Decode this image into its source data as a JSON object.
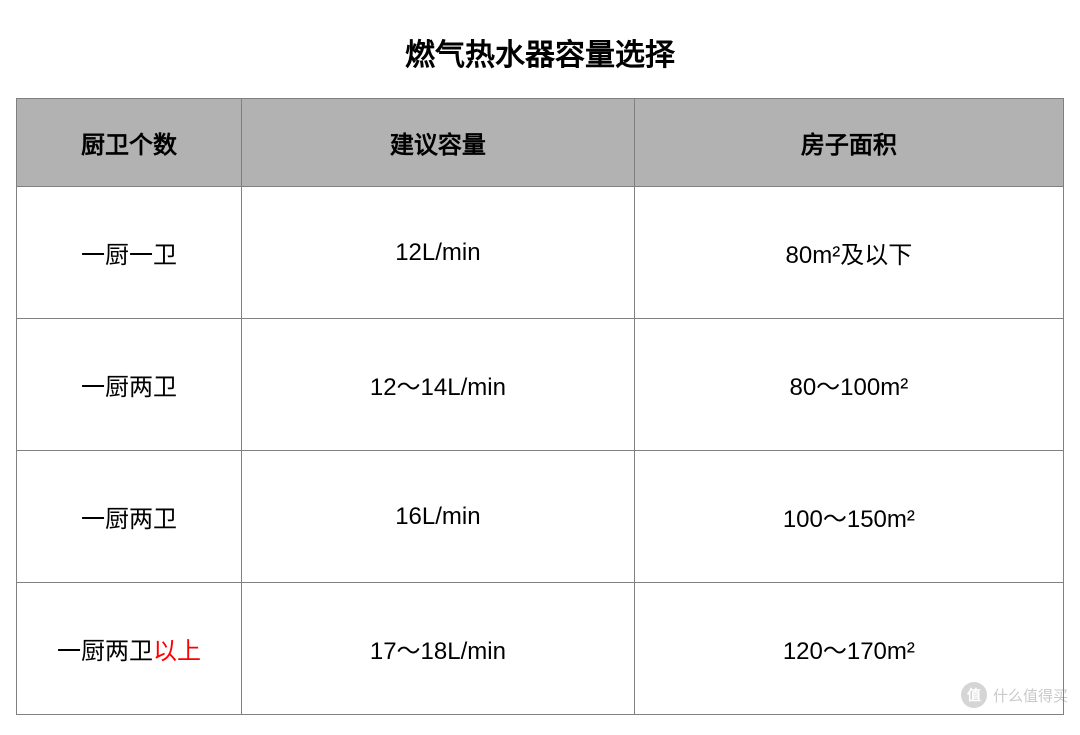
{
  "title": "燃气热水器容量选择",
  "table": {
    "columns": [
      "厨卫个数",
      "建议容量",
      "房子面积"
    ],
    "column_widths_pct": [
      21.5,
      37.5,
      41
    ],
    "header_bg_color": "#b2b2b2",
    "header_fontsize": 24,
    "header_fontweight": 700,
    "cell_fontsize": 24,
    "border_color": "#808080",
    "row_bg_color": "#ffffff",
    "rows": [
      {
        "cells": [
          {
            "text": "一厨一卫",
            "bold": true
          },
          {
            "text": "12L/min"
          },
          {
            "text": "80m²及以下"
          }
        ]
      },
      {
        "cells": [
          {
            "text": "一厨两卫",
            "bold": true
          },
          {
            "text": "12～14L/min"
          },
          {
            "text": "80～100m²"
          }
        ]
      },
      {
        "cells": [
          {
            "text": "一厨两卫",
            "bold": true
          },
          {
            "text": "16L/min"
          },
          {
            "text": "100～150m²"
          }
        ]
      },
      {
        "cells": [
          {
            "prefix": "一厨两卫",
            "highlight": "以上",
            "bold": true
          },
          {
            "text": "17～18L/min"
          },
          {
            "text": "120～170m²"
          }
        ]
      }
    ]
  },
  "watermark": {
    "icon_text": "值",
    "label": "什么值得买",
    "opacity": 0.35,
    "icon_bg": "#888888",
    "text_color": "#666666"
  },
  "colors": {
    "background": "#ffffff",
    "text": "#000000",
    "highlight": "#ff0000"
  },
  "title_fontsize": 30
}
